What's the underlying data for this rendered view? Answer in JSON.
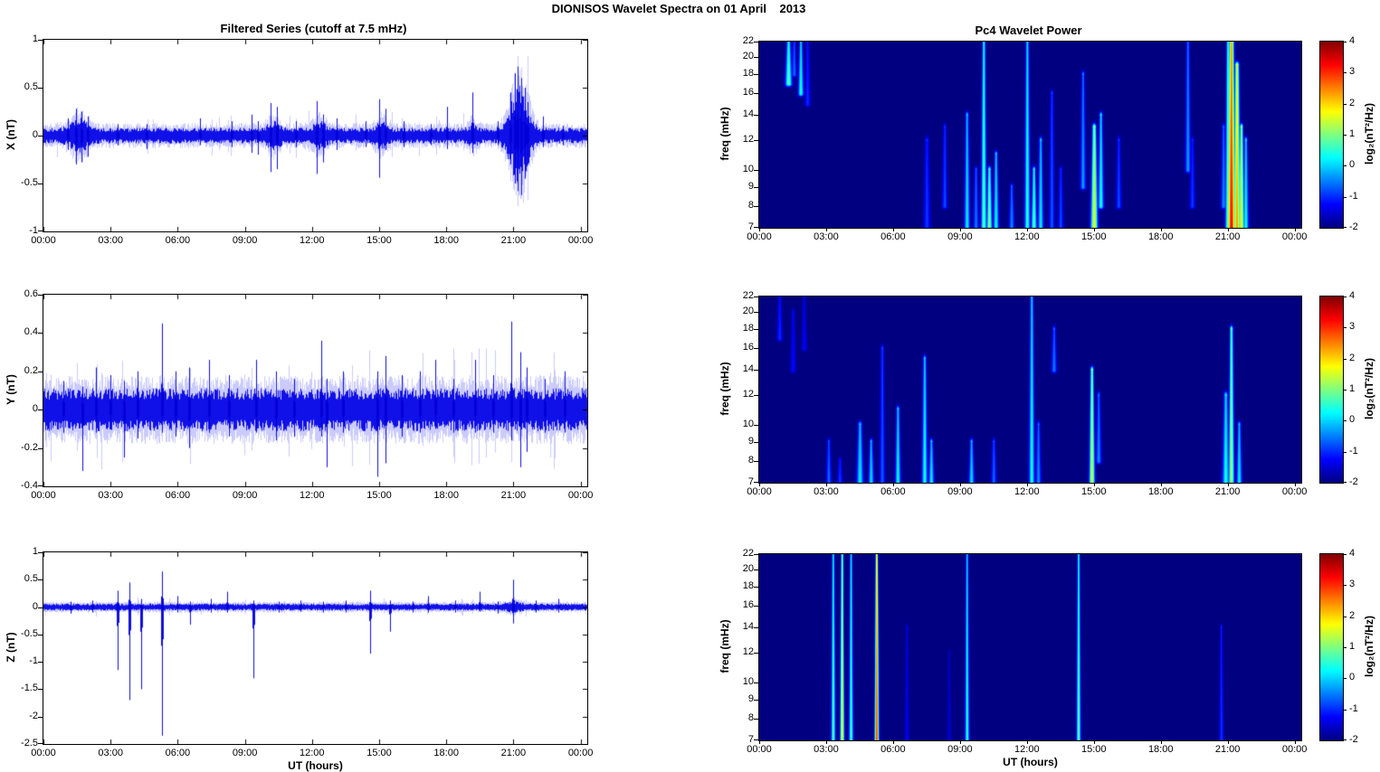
{
  "figure_title": "DIONISOS Wavelet Spectra on 01 April    2013",
  "xlabel": "UT (hours)",
  "time_axis": {
    "ticks_hours": [
      0,
      3,
      6,
      9,
      12,
      15,
      18,
      21,
      24
    ],
    "labels": [
      "00:00",
      "03:00",
      "06:00",
      "09:00",
      "12:00",
      "15:00",
      "18:00",
      "21:00",
      "00:00"
    ],
    "x_range_hours": [
      0,
      24.3
    ]
  },
  "colors": {
    "line": "#0000EE",
    "spectrogram_background": "#00008C",
    "axis": "#000000",
    "page_background": "#FFFFFF"
  },
  "colorbar": {
    "label": "log₂(nT²/Hz)",
    "ticks": [
      4,
      3,
      2,
      1,
      0,
      -1,
      -2
    ],
    "min": -2,
    "max": 4,
    "colormap": "jet"
  },
  "chart_data": [
    {
      "id": "x-series",
      "type": "line",
      "title": "Filtered Series (cutoff at 7.5 mHz)",
      "cutoff_mhz": 7.5,
      "ylabel": "X (nT)",
      "ylim": [
        -1,
        1
      ],
      "yticks": [
        1,
        0.5,
        0,
        -0.5,
        -1
      ],
      "noise_base": 0.055,
      "burst_format": "[t_hours, sigma_hours, extra_amp_nT]",
      "bursts": [
        [
          1.6,
          0.35,
          0.07
        ],
        [
          10.3,
          0.25,
          0.05
        ],
        [
          12.35,
          0.25,
          0.05
        ],
        [
          15.1,
          0.2,
          0.05
        ],
        [
          19.2,
          0.15,
          0.04
        ],
        [
          21.25,
          0.35,
          0.3
        ]
      ],
      "spike_format": "[t_hours, peak_nT, trough_nT]",
      "spikes": [
        [
          1.1,
          0.18,
          -0.15
        ],
        [
          1.45,
          0.28,
          -0.3
        ],
        [
          1.7,
          0.25,
          -0.28
        ],
        [
          2.0,
          0.2,
          -0.22
        ],
        [
          3.3,
          0.12,
          -0.1
        ],
        [
          4.6,
          0.12,
          -0.14
        ],
        [
          7.0,
          0.18,
          -0.1
        ],
        [
          8.4,
          0.15,
          -0.12
        ],
        [
          9.3,
          0.22,
          -0.18
        ],
        [
          9.6,
          0.15,
          -0.2
        ],
        [
          10.15,
          0.34,
          -0.38
        ],
        [
          10.45,
          0.3,
          -0.35
        ],
        [
          11.3,
          0.15,
          -0.12
        ],
        [
          12.2,
          0.36,
          -0.4
        ],
        [
          12.5,
          0.22,
          -0.28
        ],
        [
          13.1,
          0.18,
          -0.15
        ],
        [
          14.4,
          0.15,
          -0.12
        ],
        [
          15.0,
          0.38,
          -0.44
        ],
        [
          15.3,
          0.28,
          -0.15
        ],
        [
          16.1,
          0.15,
          -0.12
        ],
        [
          17.3,
          0.12,
          -0.1
        ],
        [
          18.05,
          0.3,
          -0.14
        ],
        [
          19.15,
          0.45,
          -0.18
        ],
        [
          20.3,
          0.15,
          -0.1
        ],
        [
          20.85,
          0.45,
          -0.3
        ],
        [
          21.05,
          0.65,
          -0.5
        ],
        [
          21.2,
          0.72,
          -0.58
        ],
        [
          21.35,
          0.6,
          -0.62
        ],
        [
          21.5,
          0.5,
          -0.45
        ],
        [
          21.65,
          0.35,
          -0.3
        ],
        [
          22.3,
          0.2,
          -0.12
        ],
        [
          23.2,
          0.1,
          -0.1
        ]
      ]
    },
    {
      "id": "y-series",
      "type": "line",
      "ylabel": "Y (nT)",
      "ylim": [
        -0.4,
        0.6
      ],
      "yticks": [
        0.6,
        0.4,
        0.2,
        0,
        -0.2,
        -0.4
      ],
      "noise_base": 0.075,
      "bursts": [],
      "spikes": [
        [
          0.9,
          0.15,
          -0.12
        ],
        [
          1.75,
          0.12,
          -0.32
        ],
        [
          2.35,
          0.22,
          -0.12
        ],
        [
          3.0,
          0.18,
          -0.1
        ],
        [
          3.6,
          0.15,
          -0.25
        ],
        [
          4.2,
          0.2,
          -0.15
        ],
        [
          5.3,
          0.45,
          -0.12
        ],
        [
          5.9,
          0.2,
          -0.14
        ],
        [
          6.5,
          0.22,
          -0.2
        ],
        [
          7.4,
          0.26,
          -0.12
        ],
        [
          8.3,
          0.18,
          -0.14
        ],
        [
          9.5,
          0.26,
          -0.12
        ],
        [
          10.4,
          0.2,
          -0.16
        ],
        [
          11.2,
          0.16,
          -0.14
        ],
        [
          12.4,
          0.36,
          -0.14
        ],
        [
          12.65,
          0.16,
          -0.3
        ],
        [
          13.4,
          0.2,
          -0.12
        ],
        [
          14.9,
          0.2,
          -0.35
        ],
        [
          15.3,
          0.28,
          -0.28
        ],
        [
          16.0,
          0.18,
          -0.14
        ],
        [
          16.8,
          0.2,
          -0.12
        ],
        [
          17.5,
          0.26,
          -0.1
        ],
        [
          18.3,
          0.16,
          -0.12
        ],
        [
          19.3,
          0.26,
          -0.12
        ],
        [
          20.1,
          0.18,
          -0.12
        ],
        [
          20.9,
          0.46,
          -0.16
        ],
        [
          21.3,
          0.3,
          -0.3
        ],
        [
          21.6,
          0.22,
          -0.22
        ],
        [
          22.4,
          0.16,
          -0.12
        ],
        [
          23.3,
          0.2,
          -0.12
        ]
      ]
    },
    {
      "id": "z-series",
      "type": "line",
      "ylabel": "Z (nT)",
      "xlabel": "UT (hours)",
      "ylim": [
        -2.5,
        1
      ],
      "yticks": [
        1,
        0.5,
        0,
        -0.5,
        -1,
        -1.5,
        -2,
        -2.5
      ],
      "noise_base": 0.042,
      "bursts": [
        [
          21.0,
          0.3,
          0.03
        ]
      ],
      "spikes": [
        [
          1.2,
          0.1,
          -0.12
        ],
        [
          2.2,
          0.12,
          -0.1
        ],
        [
          3.3,
          0.3,
          -1.15
        ],
        [
          3.85,
          0.45,
          -1.7
        ],
        [
          4.35,
          0.15,
          -1.5
        ],
        [
          5.3,
          0.65,
          -2.35
        ],
        [
          6.0,
          0.2,
          -0.1
        ],
        [
          6.55,
          0.1,
          -0.32
        ],
        [
          7.5,
          0.15,
          -0.1
        ],
        [
          8.2,
          0.28,
          -0.1
        ],
        [
          9.4,
          0.12,
          -1.3
        ],
        [
          10.5,
          0.1,
          -0.1
        ],
        [
          11.5,
          0.12,
          -0.08
        ],
        [
          12.5,
          0.1,
          -0.1
        ],
        [
          13.5,
          0.12,
          -0.1
        ],
        [
          14.6,
          0.3,
          -0.85
        ],
        [
          15.5,
          0.12,
          -0.45
        ],
        [
          16.5,
          0.1,
          -0.1
        ],
        [
          17.2,
          0.2,
          -0.1
        ],
        [
          18.4,
          0.12,
          -0.1
        ],
        [
          19.5,
          0.28,
          -0.08
        ],
        [
          20.3,
          0.1,
          -0.12
        ],
        [
          21.0,
          0.5,
          -0.3
        ],
        [
          22.0,
          0.12,
          -0.1
        ],
        [
          23.0,
          0.15,
          -0.1
        ]
      ]
    },
    {
      "id": "x-wavelet-power",
      "type": "heatmap",
      "title": "Pc4 Wavelet Power",
      "ylabel": "freq (mHz)",
      "yscale": "log",
      "flim": [
        7,
        22
      ],
      "yticks": [
        22,
        20,
        18,
        16,
        14,
        12,
        10,
        9,
        8,
        7
      ],
      "clim": [
        -2,
        4
      ],
      "streak_format": "[t_hours, freq_lo_mHz, freq_hi_mHz, peak_log2_power, sigma_minutes]",
      "streaks": [
        [
          1.3,
          17,
          22,
          0.8,
          5
        ],
        [
          1.55,
          18,
          22,
          -0.6,
          4
        ],
        [
          1.85,
          16,
          22,
          0.4,
          4
        ],
        [
          2.15,
          15,
          22,
          -1.0,
          4
        ],
        [
          7.5,
          7,
          12,
          -0.9,
          5
        ],
        [
          8.3,
          8,
          13,
          -0.8,
          4
        ],
        [
          9.3,
          7,
          14,
          0.2,
          4
        ],
        [
          9.7,
          7,
          10,
          -0.5,
          4
        ],
        [
          10.05,
          7,
          22,
          0.8,
          4
        ],
        [
          10.3,
          7,
          10,
          1.1,
          4
        ],
        [
          10.6,
          7,
          11,
          0.3,
          4
        ],
        [
          11.3,
          7,
          9,
          -0.4,
          4
        ],
        [
          12.0,
          7,
          22,
          0.5,
          4
        ],
        [
          12.3,
          7,
          10,
          0.8,
          4
        ],
        [
          12.6,
          7,
          12,
          0.2,
          4
        ],
        [
          13.1,
          7,
          16,
          -0.7,
          4
        ],
        [
          13.5,
          7,
          10,
          -0.8,
          4
        ],
        [
          14.5,
          9,
          18,
          -0.3,
          4
        ],
        [
          15.0,
          7,
          13,
          1.7,
          5
        ],
        [
          15.3,
          8,
          14,
          0.4,
          4
        ],
        [
          16.1,
          8,
          12,
          -0.8,
          4
        ],
        [
          19.2,
          10,
          22,
          -0.3,
          4
        ],
        [
          19.4,
          8,
          12,
          -0.9,
          4
        ],
        [
          20.8,
          8,
          13,
          -0.4,
          4
        ],
        [
          21.0,
          7,
          22,
          1.0,
          4
        ],
        [
          21.15,
          7,
          22,
          3.3,
          6
        ],
        [
          21.4,
          7,
          19,
          2.4,
          5
        ],
        [
          21.6,
          7,
          13,
          1.8,
          4
        ],
        [
          21.8,
          7,
          12,
          0.3,
          4
        ]
      ]
    },
    {
      "id": "y-wavelet-power",
      "type": "heatmap",
      "ylabel": "freq (mHz)",
      "yscale": "log",
      "flim": [
        7,
        22
      ],
      "yticks": [
        22,
        20,
        18,
        16,
        14,
        12,
        10,
        9,
        8,
        7
      ],
      "clim": [
        -2,
        4
      ],
      "streaks": [
        [
          0.9,
          17,
          22,
          -1.0,
          4
        ],
        [
          1.5,
          14,
          20,
          -1.2,
          4
        ],
        [
          2.0,
          16,
          22,
          -1.3,
          4
        ],
        [
          3.1,
          7,
          9,
          -0.6,
          4
        ],
        [
          3.6,
          7,
          8,
          -0.9,
          4
        ],
        [
          4.5,
          7,
          10,
          0.2,
          5
        ],
        [
          5.0,
          7,
          9,
          0.1,
          4
        ],
        [
          5.5,
          7,
          16,
          -0.7,
          4
        ],
        [
          6.2,
          7,
          11,
          0.3,
          4
        ],
        [
          7.4,
          7,
          15,
          0.4,
          4
        ],
        [
          7.7,
          7,
          9,
          0.2,
          4
        ],
        [
          9.5,
          7,
          9,
          0.1,
          4
        ],
        [
          10.5,
          7,
          9,
          -0.6,
          4
        ],
        [
          12.2,
          7,
          22,
          0.4,
          4
        ],
        [
          12.5,
          7,
          10,
          -0.4,
          4
        ],
        [
          13.2,
          14,
          18,
          -0.5,
          4
        ],
        [
          14.9,
          7,
          14,
          1.6,
          4
        ],
        [
          15.2,
          8,
          12,
          -0.4,
          4
        ],
        [
          20.9,
          7,
          12,
          0.4,
          5
        ],
        [
          21.15,
          7,
          18,
          1.3,
          4
        ],
        [
          21.5,
          7,
          10,
          0.2,
          4
        ]
      ]
    },
    {
      "id": "z-wavelet-power",
      "type": "heatmap",
      "ylabel": "freq (mHz)",
      "xlabel": "UT (hours)",
      "yscale": "log",
      "flim": [
        7,
        22
      ],
      "yticks": [
        22,
        20,
        18,
        16,
        14,
        12,
        10,
        9,
        8,
        7
      ],
      "clim": [
        -2,
        4
      ],
      "streaks": [
        [
          3.3,
          7,
          22,
          0.8,
          3
        ],
        [
          3.7,
          7,
          22,
          1.8,
          3
        ],
        [
          4.1,
          7,
          22,
          0.7,
          3
        ],
        [
          5.25,
          7,
          22,
          3.0,
          3
        ],
        [
          6.6,
          7,
          14,
          -1.3,
          3
        ],
        [
          8.5,
          7,
          12,
          -1.5,
          3
        ],
        [
          9.3,
          7,
          22,
          0.5,
          3
        ],
        [
          14.3,
          7,
          22,
          0.9,
          3
        ],
        [
          20.7,
          7,
          14,
          -0.9,
          3
        ]
      ]
    }
  ]
}
